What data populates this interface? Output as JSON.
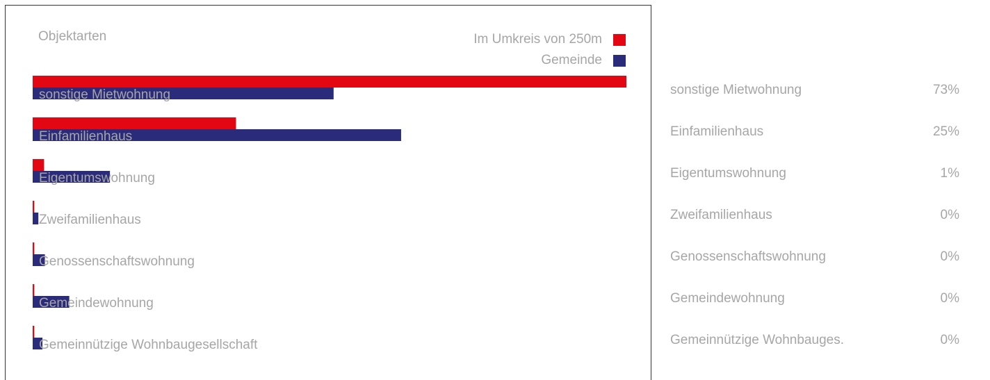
{
  "panel": {
    "title": "Objektarten"
  },
  "legend": [
    {
      "label": "Im Umkreis von 250m",
      "color": "#e30613"
    },
    {
      "label": "Gemeinde",
      "color": "#2b2b7b"
    }
  ],
  "chart_data": {
    "type": "bar",
    "orientation": "horizontal",
    "categories": [
      "sonstige Mietwohnung",
      "Einfamilienhaus",
      "Eigentumswohnung",
      "Zweifamilienhaus",
      "Genossenschaftswohnung",
      "Gemeindewohnung",
      "Gemeinnützige Wohnbaugesellschaft"
    ],
    "series": [
      {
        "name": "Im Umkreis von 250m",
        "color": "#e30613",
        "values": [
          73,
          25,
          1.4,
          0.2,
          0.2,
          0.2,
          0.2
        ]
      },
      {
        "name": "Gemeinde",
        "color": "#2b2b7b",
        "values": [
          37,
          45.3,
          9.5,
          0.7,
          1.5,
          4.5,
          1.2
        ]
      }
    ],
    "xlim": [
      0,
      73
    ],
    "grid": false,
    "legend_position": "top-right"
  },
  "side_list": [
    {
      "label": "sonstige Mietwohnung",
      "value": "73%"
    },
    {
      "label": "Einfamilienhaus",
      "value": "25%"
    },
    {
      "label": "Eigentumswohnung",
      "value": "1%"
    },
    {
      "label": "Zweifamilienhaus",
      "value": "0%"
    },
    {
      "label": "Genossenschaftswohnung",
      "value": "0%"
    },
    {
      "label": "Gemeindewohnung",
      "value": "0%"
    },
    {
      "label": "Gemeinnützige Wohnbauges.",
      "value": "0%"
    }
  ]
}
